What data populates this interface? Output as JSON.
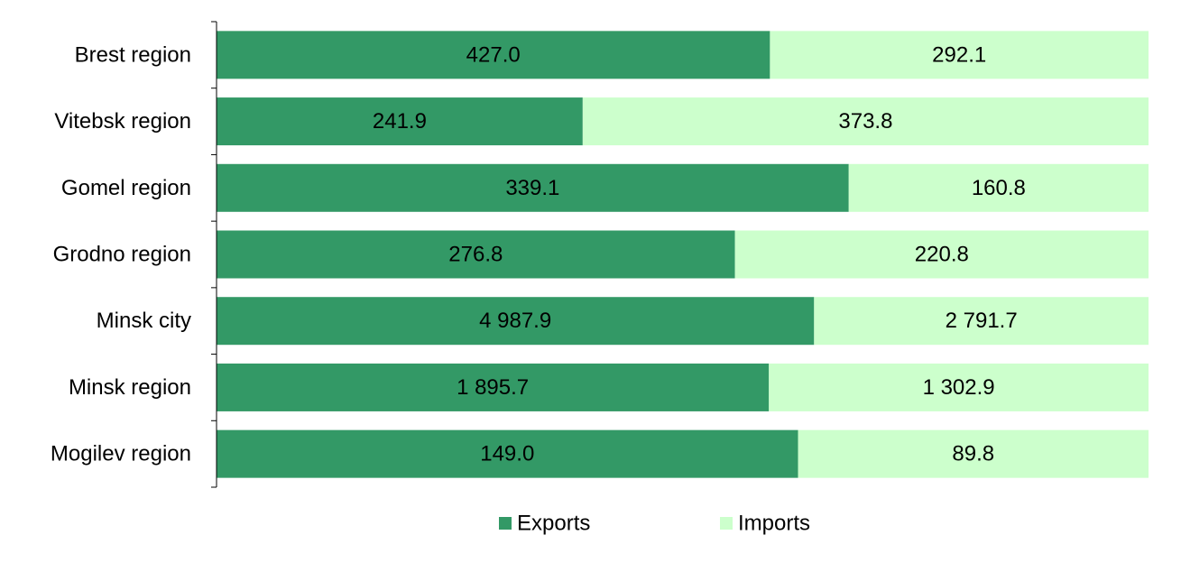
{
  "chart_data": {
    "type": "bar",
    "orientation": "horizontal",
    "stacking": "percent",
    "categories": [
      "Brest region",
      "Vitebsk region",
      "Gomel region",
      "Grodno region",
      "Minsk city",
      "Minsk region",
      "Mogilev region"
    ],
    "series": [
      {
        "name": "Exports",
        "color": "#339966",
        "values": [
          427.0,
          241.9,
          339.1,
          276.8,
          4987.9,
          1895.7,
          149.0
        ],
        "labels": [
          "427.0",
          "241.9",
          "339.1",
          "276.8",
          "4 987.9",
          "1 895.7",
          "149.0"
        ]
      },
      {
        "name": "Imports",
        "color": "#CCFFCC",
        "values": [
          292.1,
          373.8,
          160.8,
          220.8,
          2791.7,
          1302.9,
          89.8
        ],
        "labels": [
          "292.1",
          "373.8",
          "160.8",
          "220.8",
          "2 791.7",
          "1 302.9",
          "89.8"
        ]
      }
    ],
    "title": "",
    "xlabel": "",
    "ylabel": "",
    "legend_position": "bottom",
    "grid": false
  }
}
